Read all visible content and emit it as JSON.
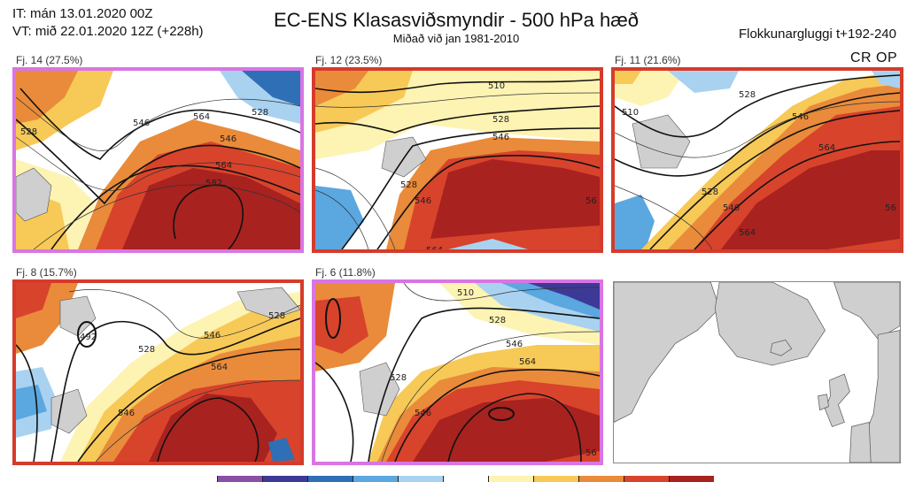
{
  "header": {
    "issue_time": "IT: mán 13.01.2020 00Z",
    "valid_time": "VT: mið 22.01.2020 12Z  (+228h)",
    "title": "EC-ENS Klasasviðsmyndir - 500 hPa hæð",
    "subtitle": "Miðað við jan 1981-2010",
    "window": "Flokkunargluggi t+192-240",
    "cr_op": "CR OP"
  },
  "panels": [
    {
      "label": "Fj. 14 (27.5%)",
      "border": "#d975e3",
      "contours": [
        "528",
        "546",
        "564",
        "582",
        "528",
        "546",
        "564"
      ]
    },
    {
      "label": "Fj. 12 (23.5%)",
      "border": "#d53b2b",
      "contours": [
        "510",
        "528",
        "546",
        "528",
        "546",
        "564",
        "56"
      ]
    },
    {
      "label": "Fj. 11 (21.6%)",
      "border": "#d53b2b",
      "contours": [
        "510",
        "528",
        "546",
        "564",
        "528",
        "546",
        "564",
        "56"
      ]
    },
    {
      "label": "Fj. 8 (15.7%)",
      "border": "#d53b2b",
      "contours": [
        "492",
        "528",
        "546",
        "564",
        "546",
        "528"
      ]
    },
    {
      "label": "Fj. 6 (11.8%)",
      "border": "#d975e3",
      "contours": [
        "510",
        "528",
        "546",
        "564",
        "546",
        "528",
        "56"
      ]
    }
  ],
  "colors": {
    "highlight_border": "#d975e3",
    "cluster_border": "#d53b2b",
    "land": "#cfcfcf",
    "anomaly_scale": [
      "#8a4fa6",
      "#3d3a97",
      "#2f6fb5",
      "#5ba7df",
      "#a9d2f0",
      "#ffffff",
      "#fdf3b3",
      "#f7c957",
      "#e98b3a",
      "#d8432c",
      "#a8221f"
    ]
  }
}
